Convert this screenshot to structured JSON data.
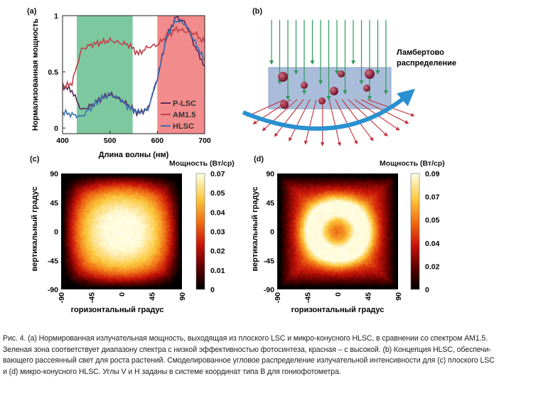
{
  "panels": {
    "a": "(a)",
    "b": "(b)",
    "c": "(c)",
    "d": "(d)"
  },
  "chart_data": [
    {
      "id": "a",
      "type": "line",
      "title": "",
      "xlabel": "Длина волны (нм)",
      "ylabel": "Нормализованная мощность",
      "xlim": [
        400,
        700
      ],
      "ylim": [
        -0.05,
        1.0
      ],
      "xticks": [
        "400",
        "500",
        "600",
        "700"
      ],
      "yticks": [
        "0",
        "0.5",
        "1"
      ],
      "regions": [
        {
          "name": "low-efficiency",
          "color": "#7ec8a0",
          "x0": 430,
          "x1": 548
        },
        {
          "name": "high-efficiency",
          "color": "#f28b8b",
          "x0": 600,
          "x1": 700
        }
      ],
      "series": [
        {
          "name": "P-LSC",
          "color": "#5a2a5a",
          "x": [
            400,
            420,
            440,
            460,
            480,
            500,
            520,
            540,
            560,
            580,
            600,
            620,
            640,
            660,
            680,
            700
          ],
          "y": [
            0.38,
            0.33,
            0.16,
            0.2,
            0.26,
            0.3,
            0.26,
            0.2,
            0.13,
            0.17,
            0.44,
            0.82,
            0.99,
            0.93,
            0.72,
            0.55
          ]
        },
        {
          "name": "AM1.5",
          "color": "#c0404a",
          "x": [
            400,
            420,
            440,
            460,
            480,
            500,
            520,
            540,
            560,
            580,
            600,
            620,
            640,
            660,
            680,
            700
          ],
          "y": [
            0.36,
            0.4,
            0.7,
            0.74,
            0.76,
            0.78,
            0.76,
            0.74,
            0.66,
            0.72,
            0.74,
            0.82,
            0.88,
            0.86,
            0.84,
            0.76
          ]
        },
        {
          "name": "HLSC",
          "color": "#3a6fb0",
          "x": [
            400,
            420,
            440,
            460,
            480,
            500,
            520,
            540,
            560,
            580,
            600,
            620,
            640,
            660,
            680,
            700
          ],
          "y": [
            0.14,
            0.12,
            0.1,
            0.18,
            0.26,
            0.3,
            0.26,
            0.18,
            0.14,
            0.16,
            0.44,
            0.82,
            0.96,
            0.92,
            0.76,
            0.6
          ]
        }
      ],
      "legend": [
        "P-LSC",
        "AM1.5",
        "HLSC"
      ]
    },
    {
      "id": "c",
      "type": "heatmap",
      "xlabel": "горизонтальный градус",
      "ylabel": "вертикальный градус",
      "xticks": [
        "-90",
        "-45",
        "0",
        "45",
        "90"
      ],
      "yticks": [
        "90",
        "45",
        "0",
        "-45",
        "-90"
      ],
      "colorbar_title": "Мощность (Вт/ср)",
      "colorbar_ticks": [
        "0.07",
        "0.05",
        "0.04",
        "0.03",
        "0.02",
        "0.01",
        "0"
      ],
      "max": 0.07,
      "pattern": "central-peak"
    },
    {
      "id": "d",
      "type": "heatmap",
      "xlabel": "горизонтальный градус",
      "ylabel": "вертикальный градус",
      "xticks": [
        "-90",
        "-45",
        "0",
        "45",
        "90"
      ],
      "yticks": [
        "90",
        "45",
        "0",
        "-45",
        "-90"
      ],
      "colorbar_title": "Мощность (Вт/ср)",
      "colorbar_ticks": [
        "0.09",
        "0.07",
        "0.05",
        "0.04",
        "0.02",
        "0"
      ],
      "max": 0.09,
      "pattern": "ring"
    }
  ],
  "diagram_b": {
    "label": "Ламбертово распределение",
    "label_lines": [
      "Ламбертово",
      "распределение"
    ],
    "colors": {
      "incoming": "#2e9a5a",
      "outgoing": "#c0303a",
      "slab": "#a9bddb",
      "arc": "#2a90d0",
      "particle": "#7a1030"
    }
  },
  "caption": {
    "lines": [
      "Рис. 4. (a) Нормированная излучательная мощность, выходящая из плоского LSC и микро-конусного HLSC, в сравнении со спектром AM1.5.",
      "Зеленая зона соответствует диапазону спектра с низкой эффективностью фотосинтеза, красная – с высокой. (b) Концепция HLSC, обеспечи-",
      "вающего рассеянный свет для роста растений. Смоделированное угловое распределение излучательной интенсивности для (c) плоского LSC",
      "и (d) микро-конусного HLSC. Углы V и H заданы в системе координат типа B для гониофотометра."
    ]
  }
}
